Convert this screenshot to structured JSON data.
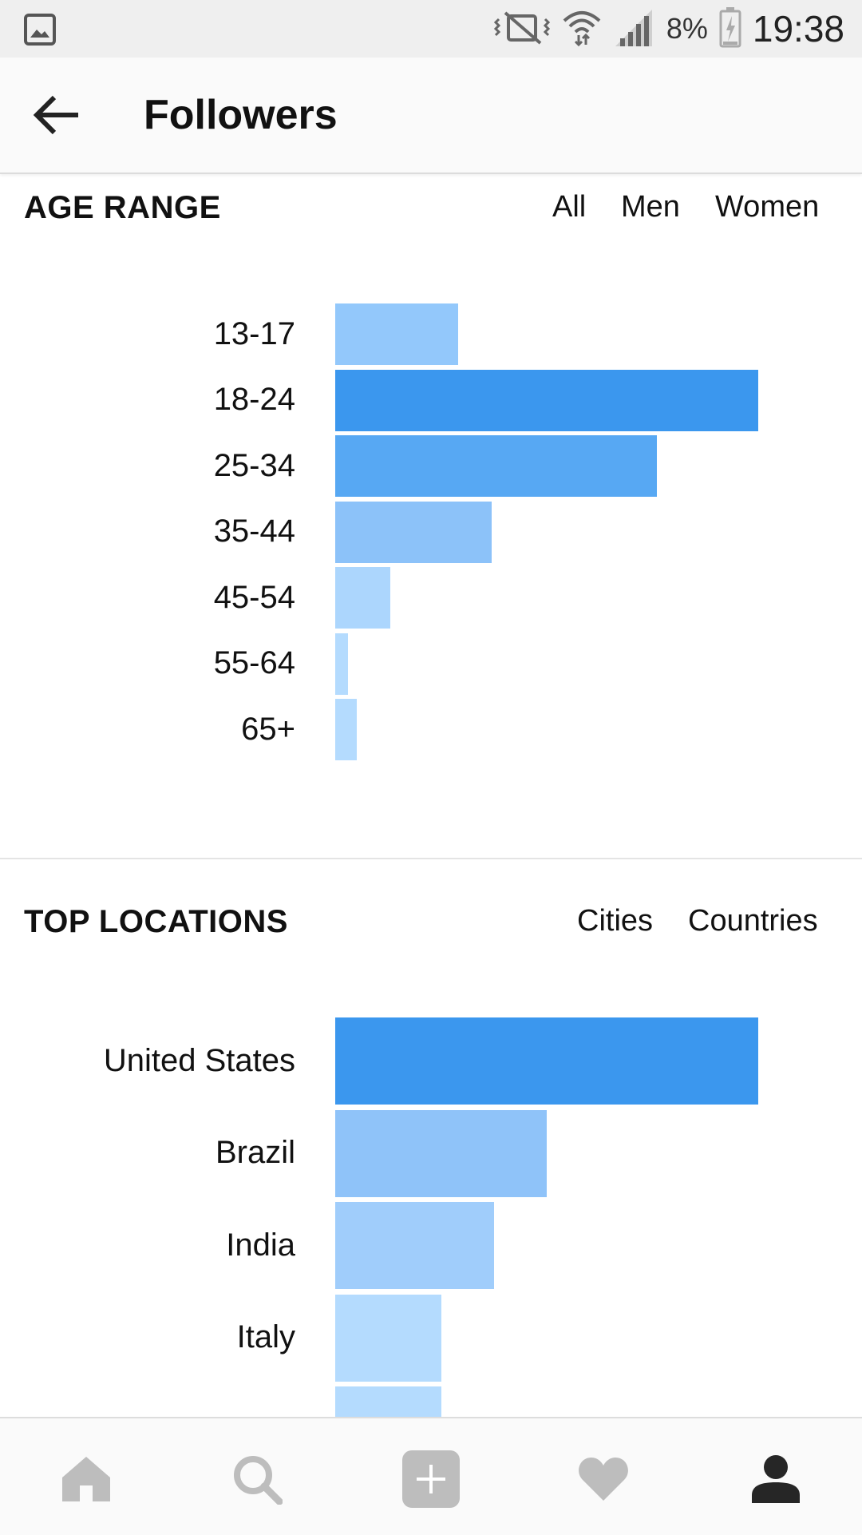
{
  "status_bar": {
    "battery": "8%",
    "time": "19:38",
    "icons": [
      "gallery-icon",
      "mute-vibrate-icon",
      "wifi-icon",
      "signal-icon",
      "battery-charging-icon"
    ]
  },
  "header": {
    "title": "Followers",
    "back_icon": "arrow-left-icon"
  },
  "age_range": {
    "title": "AGE RANGE",
    "filters": [
      "All",
      "Men",
      "Women"
    ],
    "chart_data": {
      "type": "bar",
      "orientation": "horizontal",
      "categories": [
        "13-17",
        "18-24",
        "25-34",
        "35-44",
        "45-54",
        "55-64",
        "65+"
      ],
      "values": [
        29,
        100,
        76,
        37,
        13,
        3,
        5
      ],
      "colors": [
        "#93c8fb",
        "#3b97ee",
        "#57a8f3",
        "#8cc2f9",
        "#acd6fd",
        "#b4dbfe",
        "#b4dbfe"
      ],
      "xlim": [
        0,
        100
      ],
      "grid": false,
      "legend": "none"
    }
  },
  "top_locations": {
    "title": "TOP LOCATIONS",
    "filters": [
      "Cities",
      "Countries"
    ],
    "chart_data": {
      "type": "bar",
      "orientation": "horizontal",
      "categories": [
        "United States",
        "Brazil",
        "India",
        "Italy",
        ""
      ],
      "values": [
        100,
        50,
        37.5,
        25,
        25
      ],
      "colors": [
        "#3b97ee",
        "#8fc3f9",
        "#a0cdfb",
        "#b4dbfe",
        "#b4dbfe"
      ],
      "xlim": [
        0,
        100
      ],
      "grid": false,
      "legend": "none"
    }
  },
  "bottom_nav": {
    "items": [
      {
        "icon": "home-icon",
        "color": "#bdbdbd"
      },
      {
        "icon": "search-icon",
        "color": "#bdbdbd"
      },
      {
        "icon": "add-post-icon",
        "color": "#bdbdbd"
      },
      {
        "icon": "heart-icon",
        "color": "#bdbdbd"
      },
      {
        "icon": "profile-icon",
        "color": "#262626"
      }
    ]
  }
}
